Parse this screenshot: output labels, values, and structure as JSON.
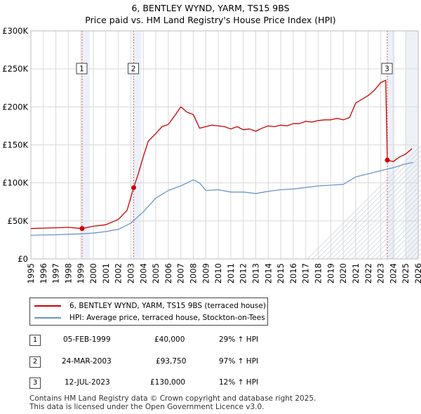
{
  "title_line1": "6, BENTLEY WYND, YARM, TS15 9BS",
  "title_line2": "Price paid vs. HM Land Registry's House Price Index (HPI)",
  "chart_data": {
    "type": "line",
    "xlim": [
      1995,
      2026
    ],
    "ylim": [
      0,
      300000
    ],
    "yticks": [
      0,
      50000,
      100000,
      150000,
      200000,
      250000,
      300000
    ],
    "ytick_labels": [
      "£0",
      "£50K",
      "£100K",
      "£150K",
      "£200K",
      "£250K",
      "£300K"
    ],
    "xticks": [
      1995,
      1996,
      1997,
      1998,
      1999,
      2000,
      2001,
      2002,
      2003,
      2004,
      2005,
      2006,
      2007,
      2008,
      2009,
      2010,
      2011,
      2012,
      2013,
      2014,
      2015,
      2016,
      2017,
      2018,
      2019,
      2020,
      2021,
      2022,
      2023,
      2024,
      2025,
      2026
    ],
    "grid": true,
    "future_shade_from": 2025,
    "series": [
      {
        "name": "6, BENTLEY WYND, YARM, TS15 9BS (terraced house)",
        "color": "#cc0000",
        "x": [
          1995,
          1996,
          1997,
          1998,
          1999.1,
          2000,
          2001,
          2002,
          2002.7,
          2003.23,
          2003.6,
          2004,
          2004.4,
          2005,
          2005.5,
          2006,
          2006.5,
          2007,
          2007.5,
          2008,
          2008.5,
          2009,
          2009.5,
          2010,
          2010.5,
          2011,
          2011.5,
          2012,
          2012.5,
          2013,
          2013.5,
          2014,
          2014.5,
          2015,
          2015.5,
          2016,
          2016.5,
          2017,
          2017.5,
          2018,
          2018.5,
          2019,
          2019.5,
          2020,
          2020.5,
          2021,
          2021.5,
          2022,
          2022.5,
          2023,
          2023.4,
          2023.53,
          2024,
          2024.5,
          2025,
          2025.5
        ],
        "values": [
          40000,
          40500,
          41000,
          41500,
          40000,
          43000,
          45000,
          52000,
          64000,
          93750,
          112000,
          135000,
          155000,
          165000,
          174000,
          177000,
          188000,
          200000,
          193000,
          190000,
          172000,
          174000,
          176000,
          175000,
          174000,
          171000,
          174000,
          170000,
          171000,
          168000,
          172000,
          175000,
          174000,
          176000,
          175000,
          178000,
          178000,
          181000,
          180000,
          182000,
          183000,
          183000,
          185000,
          183000,
          186000,
          205000,
          210000,
          215000,
          222000,
          232000,
          235000,
          130000,
          128000,
          134000,
          138000,
          145000
        ]
      },
      {
        "name": "HPI: Average price, terraced house, Stockton-on-Tees",
        "color": "#6a96c8",
        "x": [
          1995,
          1996,
          1997,
          1998,
          1999,
          2000,
          2001,
          2002,
          2003,
          2004,
          2005,
          2006,
          2007,
          2008,
          2008.5,
          2009,
          2010,
          2011,
          2012,
          2013,
          2014,
          2015,
          2016,
          2017,
          2018,
          2019,
          2020,
          2021,
          2022,
          2023,
          2024,
          2025,
          2025.6
        ],
        "values": [
          31000,
          31500,
          31800,
          32500,
          33000,
          34000,
          36000,
          39000,
          47000,
          62000,
          80000,
          90000,
          96000,
          104000,
          100000,
          90000,
          91000,
          88000,
          88000,
          86000,
          89000,
          91000,
          92000,
          94000,
          96000,
          97000,
          98000,
          108000,
          112000,
          116000,
          120000,
          125000,
          127000
        ]
      }
    ],
    "sales": [
      {
        "id": "1",
        "x": 1999.1,
        "value": 40000
      },
      {
        "id": "2",
        "x": 2003.23,
        "value": 93750
      },
      {
        "id": "3",
        "x": 2023.53,
        "value": 130000
      }
    ]
  },
  "legend": {
    "item1": "6, BENTLEY WYND, YARM, TS15 9BS (terraced house)",
    "item2": "HPI: Average price, terraced house, Stockton-on-Tees"
  },
  "transactions": [
    {
      "id": "1",
      "date": "05-FEB-1999",
      "price": "£40,000",
      "hpi": "29% ↑ HPI"
    },
    {
      "id": "2",
      "date": "24-MAR-2003",
      "price": "£93,750",
      "hpi": "97% ↑ HPI"
    },
    {
      "id": "3",
      "date": "12-JUL-2023",
      "price": "£130,000",
      "hpi": "12% ↑ HPI"
    }
  ],
  "footer_line1": "Contains HM Land Registry data © Crown copyright and database right 2025.",
  "footer_line2": "This data is licensed under the Open Government Licence v3.0."
}
